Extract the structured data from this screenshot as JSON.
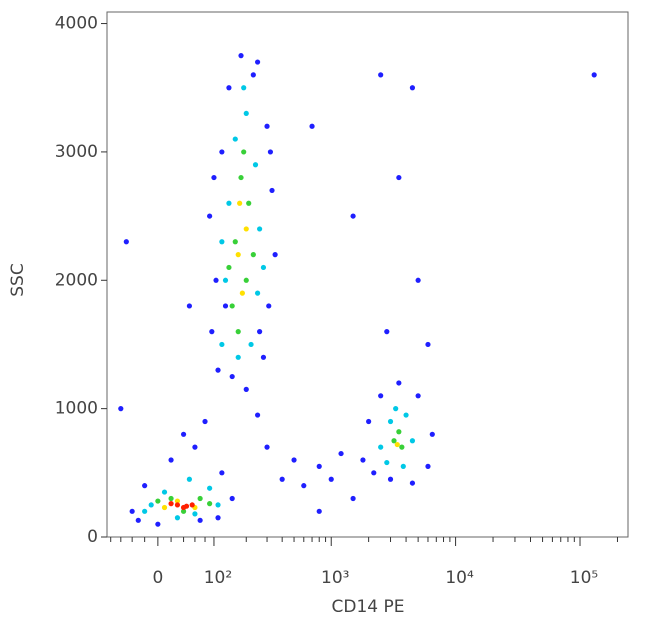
{
  "chart_data": {
    "type": "scatter",
    "xlabel": "CD14 PE",
    "ylabel": "SSC",
    "xscale": "logicle",
    "xlim": [
      -88,
      243000
    ],
    "ylim": [
      0,
      4090
    ],
    "xticks": [
      0,
      {
        "value": 100,
        "label": "10²"
      },
      {
        "value": 1000,
        "label": "10³"
      },
      {
        "value": 10000,
        "label": "10⁴"
      },
      {
        "value": 100000,
        "label": "10⁵"
      }
    ],
    "xminorticks": [
      -80,
      -60,
      -40,
      -20,
      20,
      40,
      60,
      80,
      200,
      300,
      400,
      500,
      600,
      700,
      800,
      900,
      2000,
      3000,
      4000,
      5000,
      6000,
      7000,
      8000,
      9000,
      20000,
      30000,
      40000,
      50000,
      60000,
      70000,
      80000,
      90000,
      200000
    ],
    "yticks": [
      0,
      1000,
      2000,
      3000,
      4000
    ],
    "series": [
      {
        "color": "#1f1fff",
        "x": [
          110,
          95,
          105,
          90,
          120,
          140,
          230,
          300,
          330,
          350,
          310,
          280,
          200,
          150,
          100,
          250,
          180,
          320,
          130,
          260,
          -40,
          -20,
          20,
          60,
          120,
          150,
          110,
          70,
          -30,
          0,
          80,
          40,
          1800,
          2000,
          2500,
          3500,
          5000,
          6500,
          6000,
          4500,
          3000,
          2200,
          500,
          800,
          1200,
          300,
          400,
          600,
          1000,
          2500,
          4500,
          3500,
          1500,
          5000,
          2800,
          700,
          6000,
          130000,
          800,
          -60,
          50,
          -50,
          250,
          1500
        ],
        "y": [
          1300,
          1600,
          2000,
          2500,
          3000,
          3500,
          3600,
          3200,
          2700,
          2200,
          1800,
          1400,
          1150,
          1250,
          2800,
          3700,
          3750,
          3000,
          1800,
          1600,
          200,
          400,
          600,
          700,
          500,
          300,
          150,
          130,
          130,
          100,
          900,
          800,
          600,
          900,
          1100,
          1200,
          1100,
          800,
          550,
          420,
          450,
          500,
          600,
          550,
          650,
          700,
          450,
          400,
          450,
          3600,
          3500,
          2800,
          2500,
          2000,
          1600,
          3200,
          1500,
          3600,
          200,
          1000,
          1800,
          2300,
          950,
          300
        ]
      },
      {
        "color": "#00c8e6",
        "x": [
          120,
          130,
          140,
          160,
          200,
          240,
          260,
          250,
          220,
          170,
          120,
          280,
          190,
          -10,
          10,
          50,
          90,
          110,
          60,
          -20,
          30,
          2500,
          3000,
          4000,
          4500,
          3800,
          2800,
          3300
        ],
        "y": [
          1500,
          2000,
          2600,
          3100,
          3300,
          2900,
          2400,
          1900,
          1500,
          1400,
          2300,
          2100,
          3500,
          250,
          350,
          450,
          380,
          250,
          180,
          200,
          150,
          700,
          900,
          950,
          750,
          550,
          580,
          1000
        ]
      },
      {
        "color": "#38d038",
        "x": [
          150,
          160,
          180,
          210,
          200,
          230,
          170,
          190,
          140,
          20,
          70,
          40,
          0,
          90,
          3200,
          3700,
          3500
        ],
        "y": [
          1800,
          2300,
          2800,
          2600,
          2000,
          2200,
          1600,
          3000,
          2100,
          300,
          300,
          200,
          280,
          260,
          750,
          700,
          820
        ]
      },
      {
        "color": "#ffe000",
        "x": [
          170,
          185,
          200,
          175,
          30,
          60,
          10,
          3400
        ],
        "y": [
          2200,
          1900,
          2400,
          2600,
          280,
          230,
          230,
          720
        ]
      },
      {
        "color": "#ff2000",
        "x": [
          30,
          45,
          20,
          55,
          40
        ],
        "y": [
          250,
          240,
          260,
          250,
          230
        ]
      }
    ]
  }
}
